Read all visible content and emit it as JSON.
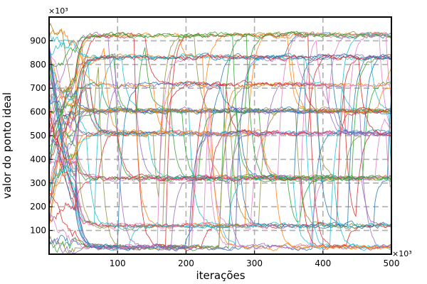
{
  "chart_data": {
    "type": "line",
    "title": "",
    "xlabel": "iterações",
    "ylabel": "valor do ponto ideal",
    "x_multiplier": "×10³",
    "y_multiplier": "×10³",
    "xlim": [
      0,
      500
    ],
    "ylim": [
      0,
      1000
    ],
    "xticks": [
      100,
      200,
      300,
      400,
      500
    ],
    "yticks": [
      100,
      200,
      300,
      400,
      500,
      600,
      700,
      800,
      900
    ],
    "xtick_labels": [
      "100",
      "200",
      "300",
      "400",
      "500"
    ],
    "ytick_labels": [
      "100",
      "200",
      "300",
      "400",
      "500",
      "600",
      "700",
      "800",
      "900"
    ],
    "grid": "dashed",
    "legend": "none",
    "convergence_levels": [
      30,
      120,
      320,
      510,
      605,
      715,
      830,
      925
    ],
    "highlighted_levels": [
      100,
      910
    ],
    "series_count": 60,
    "series_colors": [
      "#1f77b4",
      "#2ca02c",
      "#d62728",
      "#e377c2",
      "#17becf",
      "#8c8c3c",
      "#9467bd",
      "#ff7f0e"
    ]
  }
}
